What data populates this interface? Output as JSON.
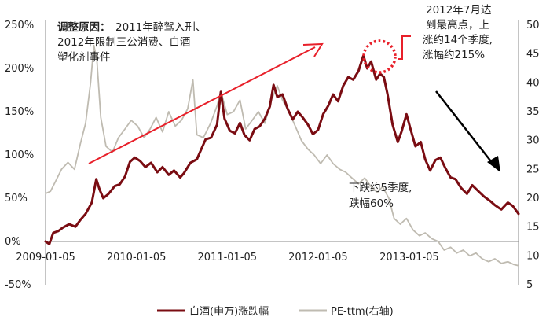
{
  "chart_data": {
    "type": "line",
    "title": "",
    "xlabel": "",
    "ylabel": "",
    "y_left_ticks": [
      "250%",
      "200%",
      "150%",
      "100%",
      "50%",
      "0%",
      "-50%"
    ],
    "y_left_lim": [
      -0.5,
      2.5
    ],
    "y_right_ticks": [
      "50",
      "45",
      "40",
      "35",
      "30",
      "25",
      "20",
      "15",
      "10",
      "5"
    ],
    "y_right_lim": [
      5,
      50
    ],
    "x_ticks": [
      "2009-01-05",
      "2010-01-05",
      "2011-01-05",
      "2012-01-05",
      "2013-01-05"
    ],
    "x_lim": [
      "2009-01-05",
      "2014-03-20"
    ],
    "grid": false,
    "legend_placement": "bottom-center",
    "series": [
      {
        "name": "白酒(申万)涨跌幅",
        "axis": "left",
        "color": "#7a0c12",
        "points": [
          [
            "2009-01-05",
            0.0
          ],
          [
            "2009-01-20",
            -0.03
          ],
          [
            "2009-02-05",
            0.1
          ],
          [
            "2009-02-25",
            0.12
          ],
          [
            "2009-03-15",
            0.16
          ],
          [
            "2009-04-10",
            0.2
          ],
          [
            "2009-05-05",
            0.17
          ],
          [
            "2009-05-25",
            0.25
          ],
          [
            "2009-06-15",
            0.32
          ],
          [
            "2009-07-10",
            0.45
          ],
          [
            "2009-07-28",
            0.72
          ],
          [
            "2009-08-10",
            0.6
          ],
          [
            "2009-08-25",
            0.5
          ],
          [
            "2009-09-15",
            0.55
          ],
          [
            "2009-10-10",
            0.64
          ],
          [
            "2009-10-30",
            0.66
          ],
          [
            "2009-11-20",
            0.75
          ],
          [
            "2009-12-10",
            0.92
          ],
          [
            "2009-12-30",
            0.97
          ],
          [
            "2010-01-20",
            0.93
          ],
          [
            "2010-02-10",
            0.86
          ],
          [
            "2010-03-05",
            0.91
          ],
          [
            "2010-03-30",
            0.8
          ],
          [
            "2010-04-20",
            0.86
          ],
          [
            "2010-05-15",
            0.77
          ],
          [
            "2010-06-05",
            0.82
          ],
          [
            "2010-06-30",
            0.74
          ],
          [
            "2010-07-15",
            0.79
          ],
          [
            "2010-08-10",
            0.91
          ],
          [
            "2010-09-05",
            0.95
          ],
          [
            "2010-10-10",
            1.18
          ],
          [
            "2010-11-01",
            1.2
          ],
          [
            "2010-11-25",
            1.35
          ],
          [
            "2010-12-10",
            1.73
          ],
          [
            "2010-12-25",
            1.42
          ],
          [
            "2011-01-15",
            1.28
          ],
          [
            "2011-02-05",
            1.25
          ],
          [
            "2011-02-25",
            1.37
          ],
          [
            "2011-03-15",
            1.23
          ],
          [
            "2011-04-05",
            1.17
          ],
          [
            "2011-04-25",
            1.3
          ],
          [
            "2011-05-15",
            1.33
          ],
          [
            "2011-06-05",
            1.42
          ],
          [
            "2011-06-25",
            1.56
          ],
          [
            "2011-07-10",
            1.81
          ],
          [
            "2011-07-25",
            1.67
          ],
          [
            "2011-08-15",
            1.7
          ],
          [
            "2011-09-05",
            1.53
          ],
          [
            "2011-09-25",
            1.41
          ],
          [
            "2011-10-15",
            1.5
          ],
          [
            "2011-11-05",
            1.43
          ],
          [
            "2011-11-25",
            1.35
          ],
          [
            "2011-12-15",
            1.24
          ],
          [
            "2012-01-05",
            1.29
          ],
          [
            "2012-01-25",
            1.47
          ],
          [
            "2012-02-15",
            1.57
          ],
          [
            "2012-03-05",
            1.7
          ],
          [
            "2012-03-25",
            1.62
          ],
          [
            "2012-04-15",
            1.8
          ],
          [
            "2012-05-05",
            1.9
          ],
          [
            "2012-05-25",
            1.87
          ],
          [
            "2012-06-15",
            1.97
          ],
          [
            "2012-07-05",
            2.15
          ],
          [
            "2012-07-20",
            2.0
          ],
          [
            "2012-08-05",
            2.08
          ],
          [
            "2012-08-25",
            1.87
          ],
          [
            "2012-09-10",
            1.94
          ],
          [
            "2012-09-25",
            1.9
          ],
          [
            "2012-10-10",
            1.7
          ],
          [
            "2012-10-30",
            1.35
          ],
          [
            "2012-11-20",
            1.15
          ],
          [
            "2012-12-05",
            1.27
          ],
          [
            "2012-12-25",
            1.47
          ],
          [
            "2013-01-10",
            1.3
          ],
          [
            "2013-01-30",
            1.1
          ],
          [
            "2013-02-20",
            1.15
          ],
          [
            "2013-03-10",
            0.95
          ],
          [
            "2013-03-30",
            0.82
          ],
          [
            "2013-04-20",
            0.94
          ],
          [
            "2013-05-10",
            0.97
          ],
          [
            "2013-05-30",
            0.85
          ],
          [
            "2013-06-20",
            0.74
          ],
          [
            "2013-07-10",
            0.72
          ],
          [
            "2013-08-01",
            0.62
          ],
          [
            "2013-08-25",
            0.55
          ],
          [
            "2013-09-15",
            0.65
          ],
          [
            "2013-10-10",
            0.58
          ],
          [
            "2013-11-01",
            0.52
          ],
          [
            "2013-11-25",
            0.47
          ],
          [
            "2013-12-15",
            0.42
          ],
          [
            "2014-01-10",
            0.37
          ],
          [
            "2014-02-05",
            0.45
          ],
          [
            "2014-02-25",
            0.41
          ],
          [
            "2014-03-20",
            0.32
          ]
        ]
      },
      {
        "name": "PE-ttm(右轴)",
        "axis": "right",
        "color": "#bfbbb1",
        "points": [
          [
            "2009-01-05",
            20.8
          ],
          [
            "2009-01-25",
            21.2
          ],
          [
            "2009-02-15",
            23.0
          ],
          [
            "2009-03-10",
            25.0
          ],
          [
            "2009-04-05",
            26.2
          ],
          [
            "2009-05-01",
            25.0
          ],
          [
            "2009-05-25",
            29.5
          ],
          [
            "2009-06-15",
            33.0
          ],
          [
            "2009-07-05",
            40.0
          ],
          [
            "2009-07-18",
            46.5
          ],
          [
            "2009-07-30",
            44.0
          ],
          [
            "2009-08-15",
            34.0
          ],
          [
            "2009-09-05",
            29.0
          ],
          [
            "2009-10-01",
            28.0
          ],
          [
            "2009-10-25",
            30.5
          ],
          [
            "2009-11-20",
            32.0
          ],
          [
            "2009-12-15",
            33.5
          ],
          [
            "2010-01-10",
            32.5
          ],
          [
            "2010-02-05",
            30.5
          ],
          [
            "2010-03-01",
            32.0
          ],
          [
            "2010-03-25",
            34.0
          ],
          [
            "2010-04-20",
            31.5
          ],
          [
            "2010-05-15",
            35.0
          ],
          [
            "2010-06-10",
            32.5
          ],
          [
            "2010-07-05",
            33.5
          ],
          [
            "2010-07-30",
            35.5
          ],
          [
            "2010-08-20",
            40.5
          ],
          [
            "2010-09-05",
            31.0
          ],
          [
            "2010-10-01",
            30.5
          ],
          [
            "2010-10-30",
            33.0
          ],
          [
            "2010-11-25",
            36.0
          ],
          [
            "2010-12-10",
            38.5
          ],
          [
            "2011-01-05",
            34.5
          ],
          [
            "2011-01-30",
            35.0
          ],
          [
            "2011-02-25",
            37.0
          ],
          [
            "2011-03-20",
            32.0
          ],
          [
            "2011-04-15",
            33.5
          ],
          [
            "2011-05-10",
            35.0
          ],
          [
            "2011-06-05",
            33.0
          ],
          [
            "2011-07-01",
            37.0
          ],
          [
            "2011-07-25",
            39.5
          ],
          [
            "2011-08-15",
            37.0
          ],
          [
            "2011-09-10",
            35.0
          ],
          [
            "2011-10-05",
            32.5
          ],
          [
            "2011-10-30",
            30.0
          ],
          [
            "2011-11-25",
            28.5
          ],
          [
            "2011-12-20",
            27.5
          ],
          [
            "2012-01-15",
            26.0
          ],
          [
            "2012-02-10",
            27.5
          ],
          [
            "2012-03-05",
            26.0
          ],
          [
            "2012-04-01",
            25.0
          ],
          [
            "2012-04-25",
            24.5
          ],
          [
            "2012-05-20",
            23.5
          ],
          [
            "2012-06-15",
            22.5
          ],
          [
            "2012-07-10",
            23.5
          ],
          [
            "2012-08-05",
            22.0
          ],
          [
            "2012-08-30",
            21.0
          ],
          [
            "2012-09-20",
            22.0
          ],
          [
            "2012-10-15",
            20.0
          ],
          [
            "2012-11-05",
            16.5
          ],
          [
            "2012-11-30",
            15.5
          ],
          [
            "2012-12-25",
            16.5
          ],
          [
            "2013-01-20",
            14.5
          ],
          [
            "2013-02-15",
            13.5
          ],
          [
            "2013-03-10",
            14.0
          ],
          [
            "2013-04-05",
            13.0
          ],
          [
            "2013-05-01",
            12.5
          ],
          [
            "2013-05-25",
            11.0
          ],
          [
            "2013-06-20",
            11.5
          ],
          [
            "2013-07-15",
            10.5
          ],
          [
            "2013-08-10",
            11.0
          ],
          [
            "2013-09-05",
            10.0
          ],
          [
            "2013-09-30",
            10.5
          ],
          [
            "2013-10-25",
            9.5
          ],
          [
            "2013-11-20",
            9.0
          ],
          [
            "2013-12-15",
            9.5
          ],
          [
            "2014-01-10",
            8.7
          ],
          [
            "2014-02-05",
            9.0
          ],
          [
            "2014-03-01",
            8.5
          ],
          [
            "2014-03-20",
            8.3
          ]
        ]
      }
    ],
    "annotations": {
      "reason_bold": "调整原因：",
      "reason_lines": [
        "2011年醉驾入刑、",
        "2012年限制三公消费、白酒",
        "塑化剂事件"
      ],
      "peak_lines": [
        "2012年7月达",
        "到最高点，上",
        "涨约14个季度,",
        "涨幅约215%"
      ],
      "decline_lines": [
        "下跌约5季度,",
        "跌幅60%"
      ]
    },
    "colors": {
      "baijiu": "#7a0c12",
      "pe": "#bfbbb1",
      "arrow_up": "#e8202a",
      "arrow_down": "#000000",
      "peak_circle": "#e8202a",
      "axis": "#8a8a8a"
    }
  }
}
